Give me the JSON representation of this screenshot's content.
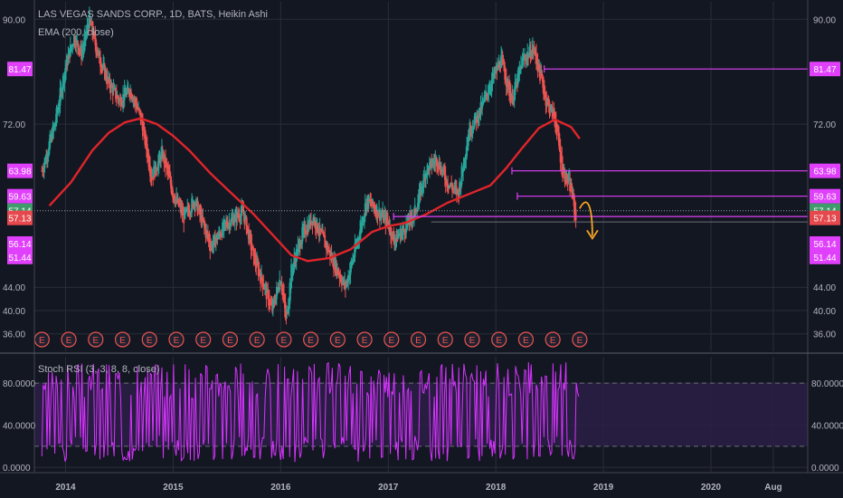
{
  "theme": {
    "bg": "#131722",
    "grid": "#2a2e39",
    "text": "#b2b5be",
    "border": "#434651",
    "candle_up": "#26a69a",
    "candle_down": "#ef5350",
    "ema": "#e0252a",
    "level": "#e040fb",
    "rsi": "#d733ff",
    "rsi_band": "#2c1f45",
    "arrow": "#f5a623",
    "price_green": "#3f9b6b",
    "price_red": "#e5484d"
  },
  "main_legend": {
    "title": "LAS VEGAS SANDS CORP., 1D, BATS, Heikin Ashi",
    "ema": "EMA (200, close)"
  },
  "rsi_legend": "Stoch RSI (3, 3, 8, 8, close)",
  "chart_data": [
    {
      "type": "candlestick",
      "ylim": [
        33,
        93
      ],
      "y_ticks": [
        "90.00",
        "72.00",
        "44.00",
        "40.00",
        "36.00"
      ],
      "x_ticks": [
        "2014",
        "2015",
        "2016",
        "2017",
        "2018",
        "2019",
        "2020",
        "Aug"
      ],
      "series": [
        {
          "name": "EMA (200, close)",
          "x": [
            2013.85,
            2014.05,
            2014.25,
            2014.4,
            2014.55,
            2014.7,
            2014.85,
            2015.0,
            2015.15,
            2015.35,
            2015.55,
            2015.75,
            2015.95,
            2016.1,
            2016.25,
            2016.45,
            2016.65,
            2016.85,
            2017.0,
            2017.15,
            2017.35,
            2017.55,
            2017.75,
            2017.95,
            2018.1,
            2018.25,
            2018.4,
            2018.55,
            2018.7,
            2018.78
          ],
          "values": [
            58,
            62,
            67.5,
            70.5,
            72.3,
            73,
            72,
            70,
            67.5,
            63.5,
            60,
            56.5,
            52.5,
            49.5,
            48.5,
            49,
            50.5,
            53.5,
            54.5,
            55,
            56.5,
            58.5,
            60,
            61.5,
            64.5,
            68,
            71.3,
            72.8,
            71.5,
            69.5
          ]
        },
        {
          "name": "Heikin Ashi price (approximate path)",
          "x": [
            2013.78,
            2013.9,
            2014.0,
            2014.08,
            2014.15,
            2014.22,
            2014.3,
            2014.4,
            2014.5,
            2014.6,
            2014.7,
            2014.8,
            2014.9,
            2015.0,
            2015.1,
            2015.2,
            2015.35,
            2015.5,
            2015.65,
            2015.75,
            2015.85,
            2015.92,
            2016.0,
            2016.05,
            2016.1,
            2016.2,
            2016.3,
            2016.4,
            2016.5,
            2016.6,
            2016.7,
            2016.8,
            2016.9,
            2017.0,
            2017.05,
            2017.15,
            2017.25,
            2017.35,
            2017.45,
            2017.55,
            2017.65,
            2017.75,
            2017.85,
            2017.95,
            2018.05,
            2018.15,
            2018.25,
            2018.35,
            2018.42,
            2018.47,
            2018.55,
            2018.62,
            2018.7,
            2018.75
          ],
          "values": [
            64,
            72,
            82,
            87,
            84,
            90,
            84,
            79,
            76,
            78,
            73,
            63,
            67,
            60,
            56,
            59,
            51,
            55,
            57,
            49,
            44,
            40,
            46,
            38,
            47,
            53,
            56,
            52,
            48,
            44,
            51,
            59,
            57,
            55,
            52,
            54,
            57,
            64,
            66,
            62,
            60,
            71,
            74,
            79,
            83,
            76,
            83,
            85,
            80,
            76,
            73,
            64,
            61,
            55
          ]
        }
      ],
      "levels": [
        "81.47",
        "63.98",
        "59.63",
        "56.14"
      ],
      "price_labels": [
        {
          "text": "81.47",
          "color": "magenta"
        },
        {
          "text": "63.98",
          "color": "magenta"
        },
        {
          "text": "59.63",
          "color": "magenta"
        },
        {
          "text": "57.14",
          "color": "green"
        },
        {
          "text": "57.13",
          "color": "red"
        },
        {
          "text": "56.14",
          "color": "magenta"
        },
        {
          "text": "51.44",
          "color": "magenta"
        }
      ],
      "earnings_marker": "E",
      "earnings_count": 21
    },
    {
      "type": "line",
      "title": "Stoch RSI (3, 3, 8, 8, close)",
      "ylim": [
        -5,
        105
      ],
      "y_ticks": [
        "80.0000",
        "40.0000",
        "0.0000"
      ],
      "bands": [
        20,
        80
      ],
      "note": "oscillates rapidly between 0 and 100 from 2013.78 to 2018.78"
    }
  ]
}
